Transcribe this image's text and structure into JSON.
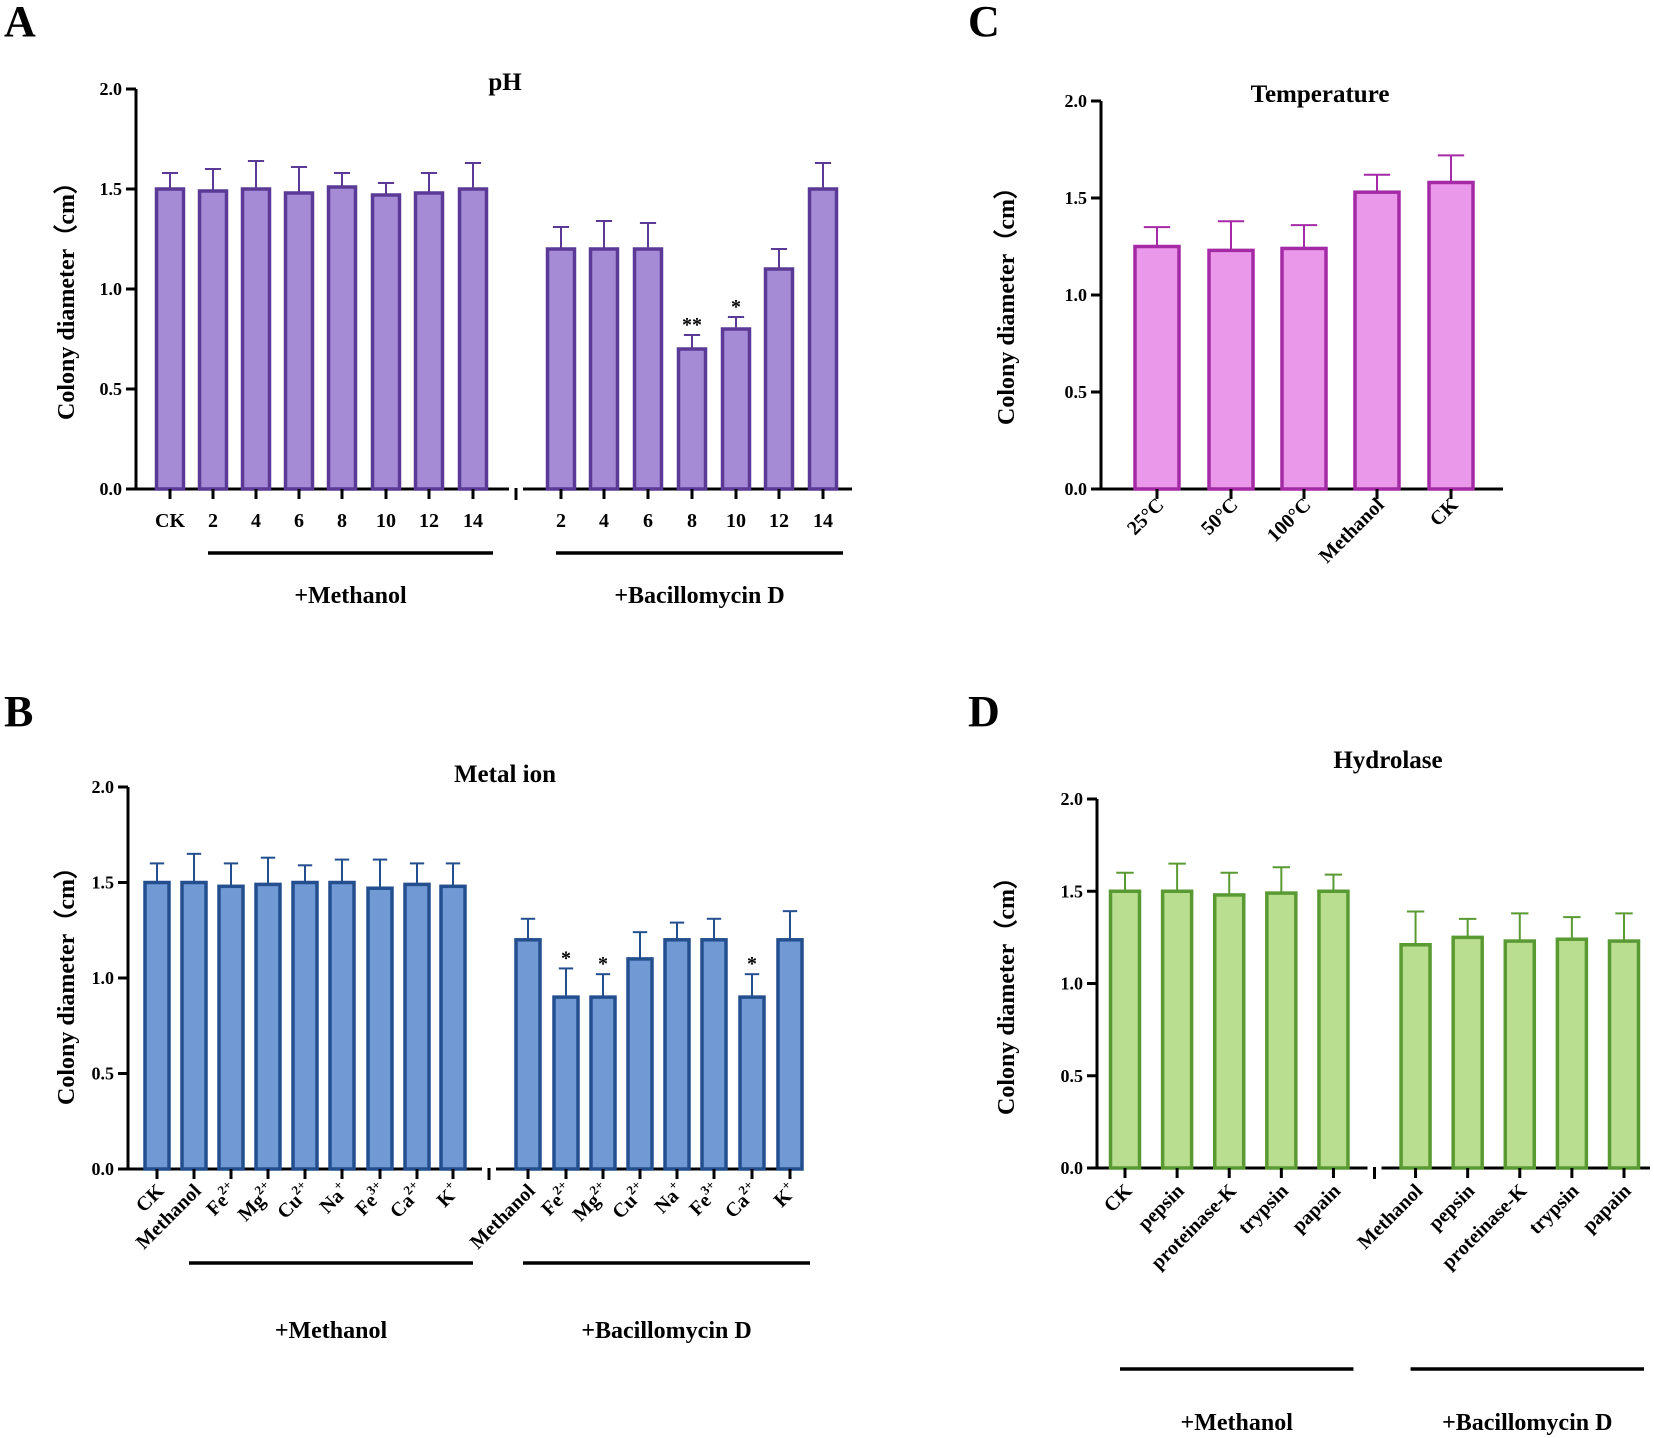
{
  "chart_data": [
    {
      "panel": "A",
      "type": "bar",
      "title": "pH",
      "ylabel": "Colony diameter（cm）",
      "xlabel": "",
      "ylim": [
        0,
        2.0
      ],
      "yticks": [
        "0.0",
        "0.5",
        "1.0",
        "1.5",
        "2.0"
      ],
      "color": "#a58bd6",
      "edge_color": "#5a3a96",
      "categories": [
        "CK",
        "2",
        "4",
        "6",
        "8",
        "10",
        "12",
        "14",
        "2",
        "4",
        "6",
        "8",
        "10",
        "12",
        "14"
      ],
      "values": [
        1.5,
        1.49,
        1.5,
        1.48,
        1.51,
        1.47,
        1.48,
        1.5,
        1.2,
        1.2,
        1.2,
        0.7,
        0.8,
        1.1,
        1.5
      ],
      "errors": [
        0.08,
        0.11,
        0.14,
        0.13,
        0.07,
        0.06,
        0.1,
        0.13,
        0.11,
        0.14,
        0.13,
        0.07,
        0.06,
        0.1,
        0.13
      ],
      "significance": [
        "",
        "",
        "",
        "",
        "",
        "",
        "",
        "",
        "",
        "",
        "",
        "**",
        "*",
        "",
        ""
      ],
      "groups": [
        {
          "label": "+Methanol",
          "from": 1,
          "to": 7
        },
        {
          "label": "+Bacillomycin D",
          "from": 8,
          "to": 14
        }
      ]
    },
    {
      "panel": "B",
      "type": "bar",
      "title": "Metal ion",
      "ylabel": "Colony diameter（cm）",
      "xlabel": "",
      "ylim": [
        0,
        2.0
      ],
      "yticks": [
        "0.0",
        "0.5",
        "1.0",
        "1.5",
        "2.0"
      ],
      "color": "#7199d4",
      "edge_color": "#244f8f",
      "categories": [
        "CK",
        "Methanol",
        "Fe",
        "Mg",
        "Cu",
        "Na",
        "Fe",
        "Ca",
        "K",
        "Methanol",
        "Fe",
        "Mg",
        "Cu",
        "Na",
        "Fe",
        "Ca",
        "K"
      ],
      "superscripts": [
        "",
        "",
        "2+",
        "2+",
        "2+",
        "+",
        "3+",
        "2+",
        "+",
        "",
        "2+",
        "2+",
        "2+",
        "+",
        "3+",
        "2+",
        "+"
      ],
      "values": [
        1.5,
        1.5,
        1.48,
        1.49,
        1.5,
        1.5,
        1.47,
        1.49,
        1.48,
        1.2,
        0.9,
        0.9,
        1.1,
        1.2,
        1.2,
        0.9,
        1.2
      ],
      "errors": [
        0.1,
        0.15,
        0.12,
        0.14,
        0.09,
        0.12,
        0.15,
        0.11,
        0.12,
        0.11,
        0.15,
        0.12,
        0.14,
        0.09,
        0.11,
        0.12,
        0.15
      ],
      "significance": [
        "",
        "",
        "",
        "",
        "",
        "",
        "",
        "",
        "",
        "",
        "*",
        "*",
        "",
        "",
        "",
        "*",
        ""
      ],
      "groups": [
        {
          "label": "+Methanol",
          "from": 1,
          "to": 8
        },
        {
          "label": "+Bacillomycin D",
          "from": 9,
          "to": 16
        }
      ]
    },
    {
      "panel": "C",
      "type": "bar",
      "title": "Temperature",
      "ylabel": "Colony diameter（cm）",
      "xlabel": "",
      "ylim": [
        0,
        2.0
      ],
      "yticks": [
        "0.0",
        "0.5",
        "1.0",
        "1.5",
        "2.0"
      ],
      "color": "#ea99ea",
      "edge_color": "#a52aa5",
      "categories": [
        "25°C",
        "50°C",
        "100°C",
        "Methanol",
        "CK"
      ],
      "values": [
        1.25,
        1.23,
        1.24,
        1.53,
        1.58
      ],
      "errors": [
        0.1,
        0.15,
        0.12,
        0.09,
        0.14
      ],
      "significance": [
        "",
        "",
        "",
        "",
        ""
      ],
      "groups": []
    },
    {
      "panel": "D",
      "type": "bar",
      "title": "Hydrolase",
      "ylabel": "Colony diameter（cm）",
      "xlabel": "",
      "ylim": [
        0,
        2.0
      ],
      "yticks": [
        "0.0",
        "0.5",
        "1.0",
        "1.5",
        "2.0"
      ],
      "color": "#b9de8f",
      "edge_color": "#5a9a33",
      "categories": [
        "CK",
        "pepsin",
        "proteinase-K",
        "trypsin",
        "papain",
        "Methanol",
        "pepsin",
        "proteinase-K",
        "trypsin",
        "papain"
      ],
      "values": [
        1.5,
        1.5,
        1.48,
        1.49,
        1.5,
        1.21,
        1.25,
        1.23,
        1.24,
        1.23
      ],
      "errors": [
        0.1,
        0.15,
        0.12,
        0.14,
        0.09,
        0.18,
        0.1,
        0.15,
        0.12,
        0.15
      ],
      "significance": [
        "",
        "",
        "",
        "",
        "",
        "",
        "",
        "",
        "",
        ""
      ],
      "groups": [
        {
          "label": "+Methanol",
          "from": 0,
          "to": 4
        },
        {
          "label": "+Bacillomycin D",
          "from": 5,
          "to": 9
        }
      ]
    }
  ]
}
